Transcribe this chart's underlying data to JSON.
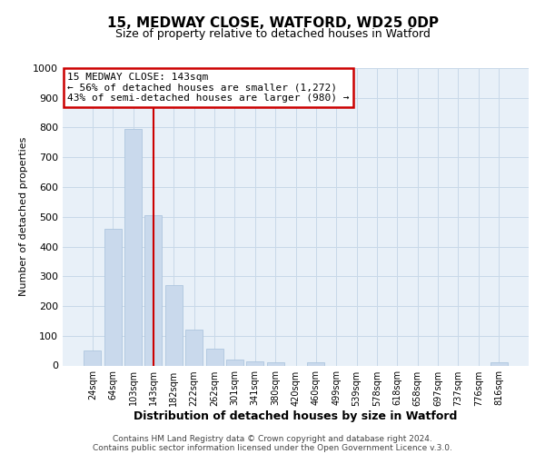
{
  "title": "15, MEDWAY CLOSE, WATFORD, WD25 0DP",
  "subtitle": "Size of property relative to detached houses in Watford",
  "xlabel": "Distribution of detached houses by size in Watford",
  "ylabel": "Number of detached properties",
  "bar_labels": [
    "24sqm",
    "64sqm",
    "103sqm",
    "143sqm",
    "182sqm",
    "222sqm",
    "262sqm",
    "301sqm",
    "341sqm",
    "380sqm",
    "420sqm",
    "460sqm",
    "499sqm",
    "539sqm",
    "578sqm",
    "618sqm",
    "658sqm",
    "697sqm",
    "737sqm",
    "776sqm",
    "816sqm"
  ],
  "bar_heights": [
    50,
    460,
    795,
    505,
    270,
    120,
    55,
    20,
    15,
    10,
    0,
    10,
    0,
    0,
    0,
    0,
    0,
    0,
    0,
    0,
    10
  ],
  "bar_color": "#c9d9ec",
  "bar_edgecolor": "#aec6de",
  "vline_x_index": 3,
  "vline_color": "#cc0000",
  "ylim": [
    0,
    1000
  ],
  "yticks": [
    0,
    100,
    200,
    300,
    400,
    500,
    600,
    700,
    800,
    900,
    1000
  ],
  "annotation_title": "15 MEDWAY CLOSE: 143sqm",
  "annotation_line1": "← 56% of detached houses are smaller (1,272)",
  "annotation_line2": "43% of semi-detached houses are larger (980) →",
  "annotation_box_facecolor": "#ffffff",
  "annotation_box_edgecolor": "#cc0000",
  "grid_color": "#c8d8e8",
  "background_color": "#e8f0f8",
  "title_fontsize": 11,
  "subtitle_fontsize": 9,
  "footer1": "Contains HM Land Registry data © Crown copyright and database right 2024.",
  "footer2": "Contains public sector information licensed under the Open Government Licence v.3.0."
}
